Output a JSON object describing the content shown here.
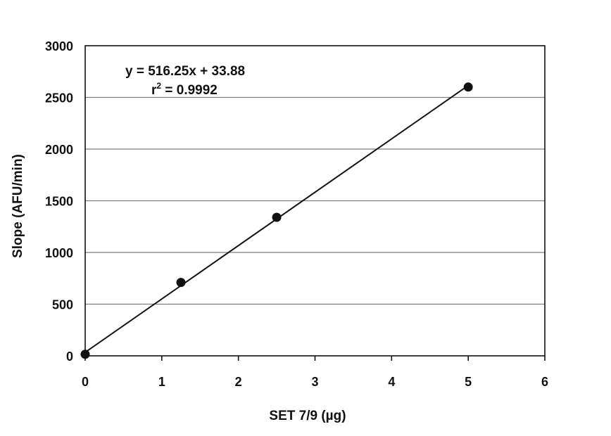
{
  "chart_data": {
    "type": "scatter",
    "title": "",
    "xlabel": "SET 7/9 (µg)",
    "ylabel": "Slope (AFU/min)",
    "xlim": [
      0,
      6
    ],
    "ylim": [
      0,
      3000
    ],
    "x_ticks": [
      0,
      1,
      2,
      3,
      4,
      5,
      6
    ],
    "y_ticks": [
      0,
      500,
      1000,
      1500,
      2000,
      2500,
      3000
    ],
    "x_tick_labels": [
      "0",
      "1",
      "2",
      "3",
      "4",
      "5",
      "6"
    ],
    "y_tick_labels": [
      "0",
      "500",
      "1000",
      "1500",
      "2000",
      "2500",
      "3000"
    ],
    "grid": "horizontal",
    "legend": "none",
    "series": [
      {
        "points": [
          {
            "x": 0,
            "y": 15
          },
          {
            "x": 1.25,
            "y": 710
          },
          {
            "x": 2.5,
            "y": 1340
          },
          {
            "x": 5,
            "y": 2600
          }
        ]
      }
    ],
    "fit": {
      "slope": 516.25,
      "intercept": 33.88,
      "x_range": [
        0,
        5
      ]
    },
    "annotations": {
      "equation": "y = 516.25x + 33.88",
      "r2_prefix": "r",
      "r2_sup": "2",
      "r2_suffix": " = 0.9992"
    },
    "colors": {
      "marker": "#111111",
      "line": "#111111",
      "grid": "#7f7f7f",
      "frame": "#111111"
    }
  }
}
